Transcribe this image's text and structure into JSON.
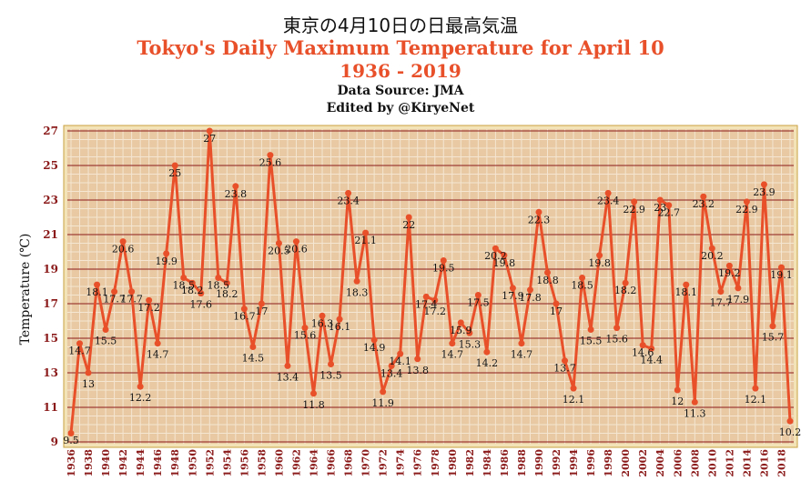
{
  "chart_data": {
    "type": "line",
    "title_jp": "東京の4月10日の日最高気温",
    "title": "Tokyo's Daily Maximum Temperature for April 10",
    "subtitle": "1936 - 2019",
    "source": "Data Source: JMA",
    "editor": "Edited by @KiryeNet",
    "ylabel": "Temperature (℃)",
    "ylim": [
      9,
      27
    ],
    "yticks": [
      9,
      11,
      13,
      15,
      17,
      19,
      21,
      23,
      25,
      27
    ],
    "xlim": [
      1936,
      2019
    ],
    "xticks": [
      "1936",
      "1938",
      "1940",
      "1942",
      "1944",
      "1946",
      "1948",
      "1950",
      "1952",
      "1954",
      "1956",
      "1958",
      "1960",
      "1962",
      "1964",
      "1966",
      "1968",
      "1970",
      "1972",
      "1974",
      "1976",
      "1978",
      "1980",
      "1982",
      "1984",
      "1986",
      "1988",
      "1990",
      "1992",
      "1994",
      "1996",
      "1998",
      "2000",
      "2002",
      "2004",
      "2006",
      "2008",
      "2010",
      "2012",
      "2014",
      "2016",
      "2018"
    ],
    "grid": true,
    "colors": {
      "line": "#e8502a",
      "plot_bg": "#e8c9a3",
      "grid_major": "#8b1a1a",
      "grid_minor": "#f5e6d2",
      "tick_label": "#8b1a1a",
      "border": "#c8a040"
    },
    "series": [
      {
        "x": [
          1936,
          1937,
          1938,
          1939,
          1940,
          1941,
          1942,
          1943,
          1944,
          1945,
          1946,
          1947,
          1948,
          1949,
          1950,
          1951,
          1952,
          1953,
          1954,
          1955,
          1956,
          1957,
          1958,
          1959,
          1960,
          1961,
          1962,
          1963,
          1964,
          1965,
          1966,
          1967,
          1968,
          1969,
          1970,
          1971,
          1972,
          1973,
          1974,
          1975,
          1976,
          1977,
          1978,
          1979,
          1980,
          1981,
          1982,
          1983,
          1984,
          1985,
          1986,
          1987,
          1988,
          1989,
          1990,
          1991,
          1992,
          1993,
          1994,
          1995,
          1996,
          1997,
          1998,
          1999,
          2000,
          2001,
          2002,
          2003,
          2004,
          2005,
          2006,
          2007,
          2008,
          2009,
          2010,
          2011,
          2012,
          2013,
          2014,
          2015,
          2016,
          2017,
          2018,
          2019
        ],
        "values": [
          9.5,
          14.7,
          13,
          18.1,
          15.5,
          17.7,
          20.6,
          17.7,
          12.2,
          17.2,
          14.7,
          19.9,
          25,
          18.5,
          18.2,
          17.6,
          27,
          18.5,
          18.2,
          23.8,
          16.7,
          14.5,
          17,
          25.6,
          20.5,
          13.4,
          20.6,
          15.6,
          11.8,
          16.3,
          13.5,
          16.1,
          23.4,
          18.3,
          21.1,
          14.9,
          11.9,
          13.4,
          14.1,
          22,
          13.8,
          17.4,
          17.2,
          19.5,
          14.7,
          15.9,
          15.3,
          17.5,
          14.2,
          20.2,
          19.8,
          17.9,
          14.7,
          17.8,
          22.3,
          18.8,
          17,
          13.7,
          12.1,
          18.5,
          15.5,
          19.8,
          23.4,
          15.6,
          18.2,
          22.9,
          14.6,
          14.4,
          23,
          22.7,
          12,
          18.1,
          11.3,
          23.2,
          20.2,
          17.7,
          19.2,
          17.9,
          22.9,
          12.1,
          23.9,
          15.7,
          19.1,
          10.2
        ],
        "labels": [
          "9.5",
          "14.7",
          "13",
          "18.1",
          "15.5",
          "17.7",
          "20.6",
          "17.7",
          "12.2",
          "17.2",
          "14.7",
          "19.9",
          "25",
          "18.5",
          "18.2",
          "17.6",
          "27",
          "18.5",
          "18.2",
          "23.8",
          "16.7",
          "14.5",
          "17",
          "25.6",
          "20.5",
          "13.4",
          "20.6",
          "15.6",
          "11.8",
          "16.3",
          "13.5",
          "16.1",
          "23.4",
          "18.3",
          "21.1",
          "14.9",
          "11.9",
          "13.4",
          "14.1",
          "22",
          "13.8",
          "17.4",
          "17.2",
          "19.5",
          "14.7",
          "15.9",
          "15.3",
          "17.5",
          "14.2",
          "20.2",
          "19.8",
          "17.9",
          "14.7",
          "17.8",
          "22.3",
          "18.8",
          "17",
          "13.7",
          "12.1",
          "18.5",
          "15.5",
          "19.8",
          "23.4",
          "15.6",
          "18.2",
          "22.9",
          "14.6",
          "14.4",
          "23",
          "22.7",
          "12",
          "18.1",
          "11.3",
          "23.2",
          "20.2",
          "17.7",
          "19.2",
          "17.9",
          "22.9",
          "12.1",
          "23.9",
          "15.7",
          "19.1",
          "10.2"
        ]
      }
    ]
  }
}
